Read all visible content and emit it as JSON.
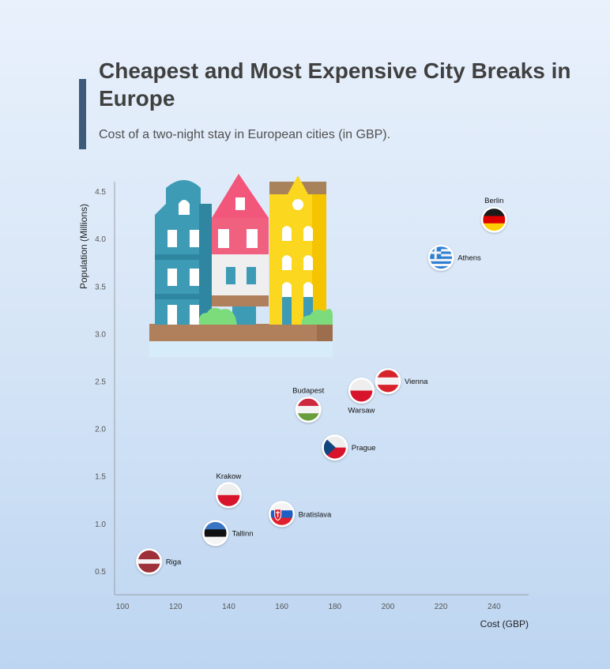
{
  "header": {
    "title": "Cheapest and Most Expensive City Breaks in Europe",
    "subtitle": "Cost of a two-night stay in European cities (in GBP)."
  },
  "colors": {
    "accent": "#3d5a7a",
    "title": "#404040",
    "axis": "#9aa0a8"
  },
  "illustration": "european-houses-illustration",
  "chart_data": {
    "type": "scatter",
    "title": "Cheapest and Most Expensive City Breaks in Europe",
    "subtitle": "Cost of a two-night stay in European cities (in GBP).",
    "xlabel": "Cost (GBP)",
    "ylabel": "Population (Millions)",
    "xlim": [
      97,
      253
    ],
    "ylim": [
      0.25,
      4.6
    ],
    "xticks": [
      100,
      120,
      140,
      160,
      180,
      200,
      220,
      240
    ],
    "yticks": [
      0.5,
      1.0,
      1.5,
      2.0,
      2.5,
      3.0,
      3.5,
      4.0,
      4.5
    ],
    "grid": false,
    "points": [
      {
        "city": "Berlin",
        "x": 240,
        "y": 4.2,
        "flag": "germany",
        "label_pos": "top"
      },
      {
        "city": "Athens",
        "x": 220,
        "y": 3.8,
        "flag": "greece",
        "label_pos": "right"
      },
      {
        "city": "Vienna",
        "x": 200,
        "y": 2.5,
        "flag": "austria",
        "label_pos": "right"
      },
      {
        "city": "Warsaw",
        "x": 190,
        "y": 2.4,
        "flag": "poland",
        "label_pos": "bottom"
      },
      {
        "city": "Budapest",
        "x": 170,
        "y": 2.2,
        "flag": "hungary",
        "label_pos": "top"
      },
      {
        "city": "Prague",
        "x": 180,
        "y": 1.8,
        "flag": "czechia",
        "label_pos": "right"
      },
      {
        "city": "Krakow",
        "x": 140,
        "y": 1.3,
        "flag": "poland",
        "label_pos": "top"
      },
      {
        "city": "Bratislava",
        "x": 160,
        "y": 1.1,
        "flag": "slovakia",
        "label_pos": "right"
      },
      {
        "city": "Tallinn",
        "x": 135,
        "y": 0.9,
        "flag": "estonia",
        "label_pos": "right"
      },
      {
        "city": "Riga",
        "x": 110,
        "y": 0.6,
        "flag": "latvia",
        "label_pos": "right"
      }
    ]
  }
}
